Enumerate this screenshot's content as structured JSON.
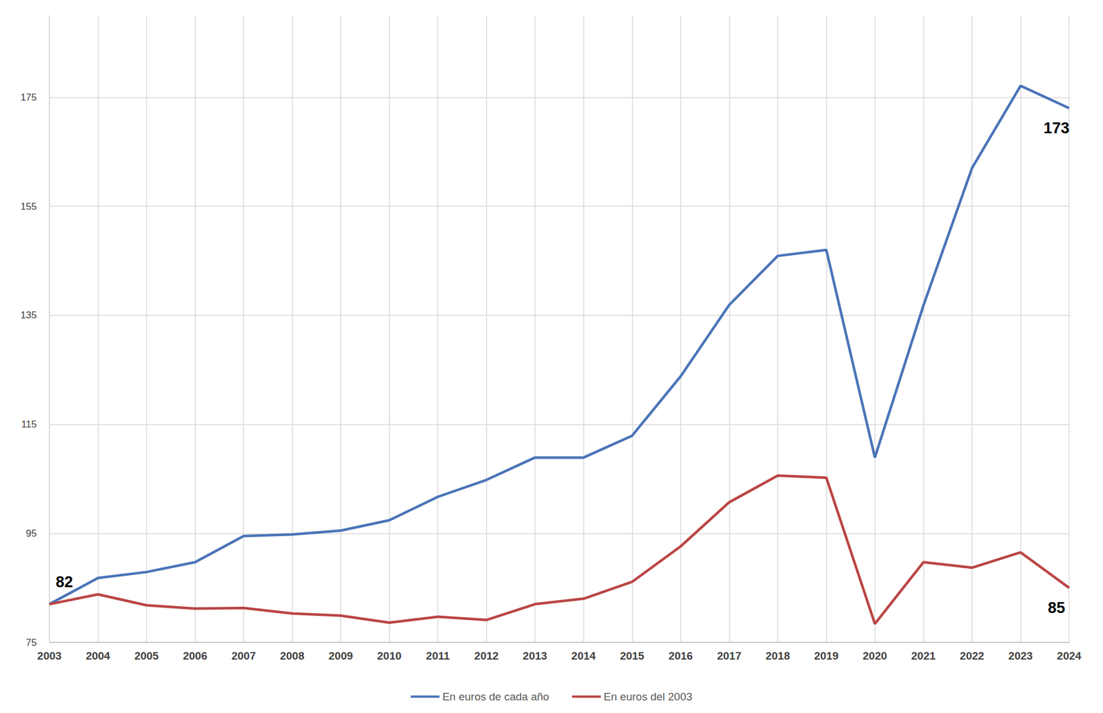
{
  "chart_data": {
    "type": "line",
    "categories": [
      "2003",
      "2004",
      "2005",
      "2006",
      "2007",
      "2008",
      "2009",
      "2010",
      "2011",
      "2012",
      "2013",
      "2014",
      "2015",
      "2016",
      "2017",
      "2018",
      "2019",
      "2020",
      "2021",
      "2022",
      "2023",
      "2024"
    ],
    "series": [
      {
        "name": "En euros de cada año",
        "color": "#4a74b8",
        "values": [
          82,
          86.8,
          87.9,
          89.7,
          94.5,
          94.8,
          95.5,
          97.4,
          101.7,
          104.8,
          108.9,
          108.9,
          112.9,
          123.8,
          136.9,
          145.9,
          147,
          108.9,
          136.8,
          162,
          177.1,
          173
        ]
      },
      {
        "name": "En euros del 2003",
        "color": "#b94543",
        "values": [
          82,
          83.8,
          81.8,
          81.2,
          81.3,
          80.3,
          79.9,
          78.6,
          79.7,
          79.1,
          82,
          83,
          86.1,
          92.6,
          100.7,
          105.6,
          105.2,
          78.4,
          89.7,
          88.7,
          91.5,
          85
        ]
      }
    ],
    "annotations": [
      {
        "text": "82",
        "series": "En euros de cada año",
        "x": "2003"
      },
      {
        "text": "173",
        "series": "En euros de cada año",
        "x": "2024"
      },
      {
        "text": "85",
        "series": "En euros del 2003",
        "x": "2024"
      }
    ],
    "ylim": [
      75,
      190
    ],
    "yticks": [
      75,
      95,
      115,
      135,
      155,
      175
    ],
    "grid": true,
    "legend": "bottom"
  }
}
